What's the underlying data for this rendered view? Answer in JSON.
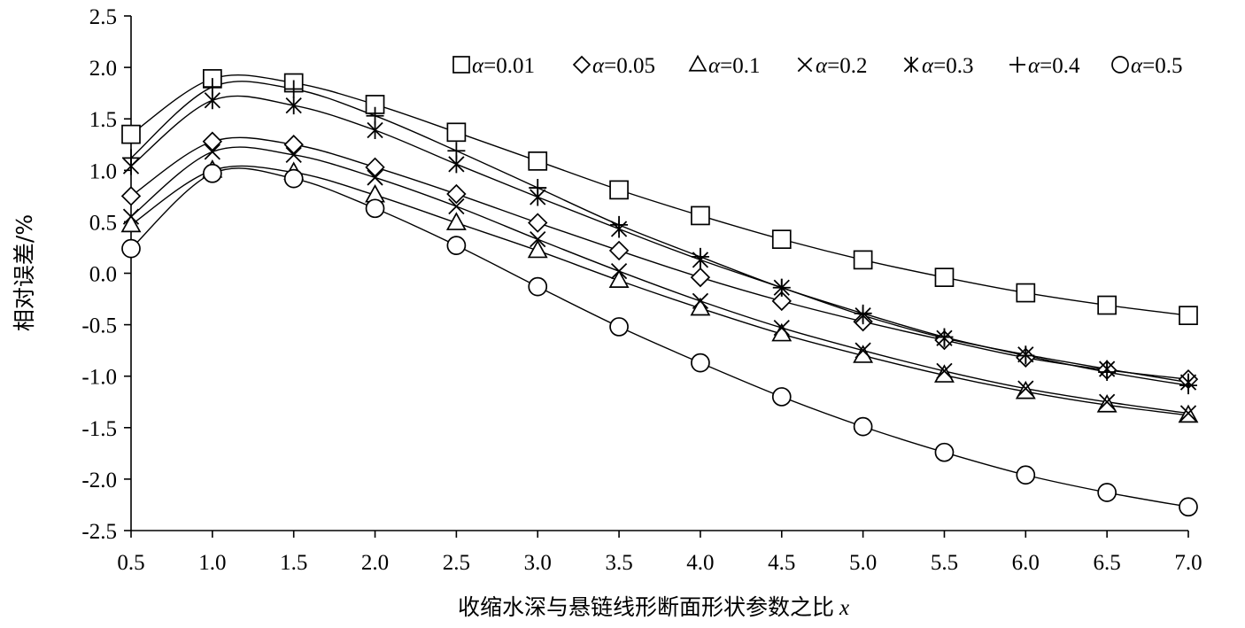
{
  "chart_data": {
    "type": "line",
    "title": "",
    "xlabel": "收缩水深与悬链线形断面形状参数之比",
    "xlabel_var": "x",
    "ylabel": "相对误差/%",
    "xlim": [
      0.5,
      7.0
    ],
    "ylim": [
      -2.5,
      2.5
    ],
    "x_ticks": [
      "0.5",
      "1.0",
      "1.5",
      "2.0",
      "2.5",
      "3.0",
      "3.5",
      "4.0",
      "4.5",
      "5.0",
      "5.5",
      "6.0",
      "6.5",
      "7.0"
    ],
    "y_ticks": [
      "2.5",
      "2.0",
      "1.5",
      "1.0",
      "0.5",
      "0.0",
      "-0.5",
      "-1.0",
      "-1.5",
      "-2.0",
      "-2.5"
    ],
    "grid": false,
    "legend_position": "top",
    "x": [
      0.5,
      1.0,
      1.5,
      2.0,
      2.5,
      3.0,
      3.5,
      4.0,
      4.5,
      5.0,
      5.5,
      6.0,
      6.5,
      7.0
    ],
    "series": [
      {
        "name": "α=0.01",
        "symbol": "□",
        "marker": "square",
        "values": [
          1.35,
          1.89,
          1.85,
          1.64,
          1.37,
          1.09,
          0.81,
          0.56,
          0.33,
          0.13,
          -0.04,
          -0.19,
          -0.31,
          -0.41
        ]
      },
      {
        "name": "α=0.05",
        "symbol": "◇",
        "marker": "diamond",
        "values": [
          0.75,
          1.28,
          1.25,
          1.03,
          0.77,
          0.49,
          0.22,
          -0.04,
          -0.27,
          -0.47,
          -0.65,
          -0.82,
          -0.94,
          -1.03
        ]
      },
      {
        "name": "α=0.1",
        "symbol": "△",
        "marker": "triangle",
        "values": [
          0.47,
          1.0,
          0.98,
          0.76,
          0.49,
          0.22,
          -0.07,
          -0.34,
          -0.59,
          -0.8,
          -0.99,
          -1.15,
          -1.28,
          -1.38
        ]
      },
      {
        "name": "α=0.2",
        "symbol": "✕",
        "marker": "x",
        "values": [
          0.55,
          1.18,
          1.15,
          0.93,
          0.65,
          0.33,
          0.02,
          -0.27,
          -0.53,
          -0.75,
          -0.95,
          -1.12,
          -1.25,
          -1.36
        ]
      },
      {
        "name": "α=0.3",
        "symbol": "✱",
        "marker": "asterisk",
        "values": [
          1.04,
          1.68,
          1.63,
          1.39,
          1.06,
          0.74,
          0.43,
          0.13,
          -0.14,
          -0.41,
          -0.63,
          -0.79,
          -0.93,
          -1.06
        ]
      },
      {
        "name": "α=0.4",
        "symbol": "+",
        "marker": "plus",
        "values": [
          1.12,
          1.81,
          1.79,
          1.53,
          1.19,
          0.83,
          0.47,
          0.16,
          -0.14,
          -0.39,
          -0.62,
          -0.8,
          -0.96,
          -1.09
        ]
      },
      {
        "name": "α=0.5",
        "symbol": "○",
        "marker": "circle",
        "values": [
          0.24,
          0.97,
          0.92,
          0.63,
          0.27,
          -0.13,
          -0.52,
          -0.87,
          -1.2,
          -1.49,
          -1.74,
          -1.96,
          -2.13,
          -2.27
        ]
      }
    ]
  }
}
